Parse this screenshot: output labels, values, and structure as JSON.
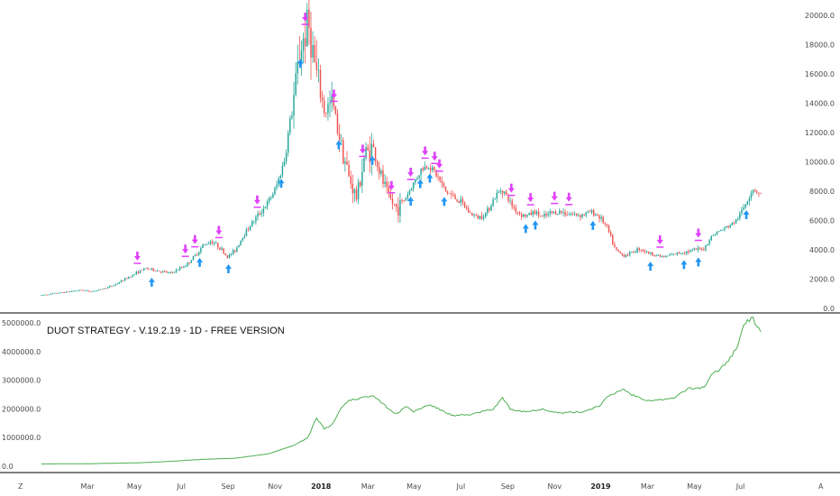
{
  "colors": {
    "up": "#26a69a",
    "down": "#ef5350",
    "equity": "#4caf50",
    "buy_arrow": "#2196f3",
    "sell_arrow": "#e040fb",
    "red_marker": "#e91e1e",
    "axis_line": "#000000",
    "tick_text": "#4a4a4a"
  },
  "chart_data": [
    {
      "type": "candlestick",
      "title": "",
      "ylim": [
        0,
        20000
      ],
      "y_ticks": [
        "0.0",
        "2000.0",
        "4000.0",
        "6000.0",
        "8000.0",
        "10000.0",
        "12000.0",
        "14000.0",
        "16000.0",
        "18000.0",
        "20000.0"
      ],
      "y_tick_values": [
        0,
        2000,
        4000,
        6000,
        8000,
        10000,
        12000,
        14000,
        16000,
        18000,
        20000
      ],
      "series_points": [
        [
          0,
          900
        ],
        [
          1,
          980
        ],
        [
          2,
          1050
        ],
        [
          3,
          1120
        ],
        [
          4,
          1200
        ],
        [
          5,
          1250
        ],
        [
          6,
          1150
        ],
        [
          7,
          1250
        ],
        [
          8,
          1400
        ],
        [
          9,
          1600
        ],
        [
          10,
          1900
        ],
        [
          11,
          2200
        ],
        [
          12,
          2500
        ],
        [
          13,
          2750
        ],
        [
          14,
          2600
        ],
        [
          15,
          2500
        ],
        [
          16,
          2400
        ],
        [
          17,
          2700
        ],
        [
          18,
          3000
        ],
        [
          19,
          3600
        ],
        [
          20,
          4300
        ],
        [
          21,
          4600
        ],
        [
          22,
          4200
        ],
        [
          23,
          3500
        ],
        [
          24,
          4000
        ],
        [
          25,
          5000
        ],
        [
          26,
          5800
        ],
        [
          27,
          6500
        ],
        [
          28,
          7200
        ],
        [
          29,
          8200
        ],
        [
          30,
          10000
        ],
        [
          31,
          13500
        ],
        [
          32,
          17500
        ],
        [
          33,
          19500
        ],
        [
          34,
          16000
        ],
        [
          35,
          13500
        ],
        [
          36,
          14000
        ],
        [
          37,
          11500
        ],
        [
          38,
          9000
        ],
        [
          39,
          7500
        ],
        [
          40,
          10500
        ],
        [
          41,
          11000
        ],
        [
          42,
          9000
        ],
        [
          43,
          7500
        ],
        [
          44,
          6800
        ],
        [
          45,
          7500
        ],
        [
          46,
          8500
        ],
        [
          47,
          9500
        ],
        [
          48,
          9800
        ],
        [
          49,
          9000
        ],
        [
          50,
          8000
        ],
        [
          51,
          7600
        ],
        [
          52,
          7200
        ],
        [
          53,
          6500
        ],
        [
          54,
          6200
        ],
        [
          55,
          6500
        ],
        [
          56,
          7500
        ],
        [
          57,
          8200
        ],
        [
          58,
          7200
        ],
        [
          59,
          6500
        ],
        [
          60,
          6300
        ],
        [
          61,
          6600
        ],
        [
          62,
          6200
        ],
        [
          63,
          6500
        ],
        [
          64,
          6600
        ],
        [
          65,
          6500
        ],
        [
          66,
          6400
        ],
        [
          67,
          6400
        ],
        [
          68,
          6600
        ],
        [
          69,
          6300
        ],
        [
          70,
          5500
        ],
        [
          71,
          4000
        ],
        [
          72,
          3600
        ],
        [
          73,
          3800
        ],
        [
          74,
          4100
        ],
        [
          75,
          3800
        ],
        [
          76,
          3650
        ],
        [
          77,
          3500
        ],
        [
          78,
          3650
        ],
        [
          79,
          3800
        ],
        [
          80,
          3900
        ],
        [
          81,
          4000
        ],
        [
          82,
          4100
        ],
        [
          83,
          5000
        ],
        [
          84,
          5300
        ],
        [
          85,
          5600
        ],
        [
          86,
          6000
        ],
        [
          87,
          7000
        ],
        [
          88,
          8200
        ],
        [
          89,
          7800
        ]
      ],
      "buy_signals": [
        23,
        33,
        39,
        50,
        54,
        62,
        69,
        77,
        79,
        81,
        84,
        101,
        103,
        115,
        127,
        134,
        137,
        147
      ],
      "sell_signals": [
        20,
        30,
        32,
        37,
        45,
        55,
        61,
        67,
        73,
        77,
        80,
        82,
        83,
        98,
        102,
        107,
        110,
        129,
        137
      ]
    },
    {
      "type": "line",
      "title": "DUOT STRATEGY - V.19.2.19 - 1D - FREE VERSION",
      "ylim": [
        0,
        5000000
      ],
      "y_ticks": [
        "0.0",
        "1000000.0",
        "2000000.0",
        "3000000.0",
        "4000000.0",
        "5000000.0"
      ],
      "y_tick_values": [
        0,
        1000000,
        2000000,
        3000000,
        4000000,
        5000000
      ],
      "series": [
        {
          "name": "Equity",
          "values": [
            [
              0,
              80000
            ],
            [
              6,
              90000
            ],
            [
              12,
              120000
            ],
            [
              16,
              170000
            ],
            [
              20,
              240000
            ],
            [
              24,
              280000
            ],
            [
              28,
              430000
            ],
            [
              31,
              700000
            ],
            [
              33,
              1000000
            ],
            [
              34,
              1700000
            ],
            [
              35,
              1300000
            ],
            [
              36,
              1450000
            ],
            [
              37,
              2000000
            ],
            [
              38,
              2300000
            ],
            [
              40,
              2400000
            ],
            [
              41,
              2500000
            ],
            [
              43,
              2000000
            ],
            [
              44,
              1800000
            ],
            [
              45,
              2100000
            ],
            [
              46,
              1900000
            ],
            [
              48,
              2150000
            ],
            [
              51,
              1750000
            ],
            [
              53,
              1800000
            ],
            [
              56,
              2000000
            ],
            [
              57,
              2400000
            ],
            [
              58,
              2000000
            ],
            [
              60,
              1900000
            ],
            [
              62,
              2000000
            ],
            [
              64,
              1850000
            ],
            [
              67,
              1900000
            ],
            [
              69,
              2100000
            ],
            [
              70,
              2400000
            ],
            [
              72,
              2700000
            ],
            [
              73,
              2500000
            ],
            [
              75,
              2300000
            ],
            [
              78,
              2350000
            ],
            [
              80,
              2700000
            ],
            [
              82,
              2750000
            ],
            [
              83,
              3200000
            ],
            [
              84,
              3400000
            ],
            [
              85,
              3700000
            ],
            [
              86,
              4100000
            ],
            [
              87,
              5000000
            ],
            [
              88,
              5150000
            ],
            [
              89,
              4700000
            ]
          ]
        }
      ]
    }
  ],
  "x_axis": {
    "labels": [
      "Mar",
      "May",
      "Jul",
      "Sep",
      "Nov",
      "2018",
      "Mar",
      "May",
      "Jul",
      "Sep",
      "Nov",
      "2019",
      "Mar",
      "May",
      "Jul"
    ],
    "label_positions": [
      5.7,
      11.5,
      17.3,
      23.1,
      28.9,
      34.6,
      40.4,
      46.1,
      51.9,
      57.7,
      63.5,
      69.2,
      75.0,
      80.8,
      86.5
    ],
    "bold_labels": [
      "2018",
      "2019"
    ]
  },
  "corner_left": "Z",
  "corner_right": "A"
}
